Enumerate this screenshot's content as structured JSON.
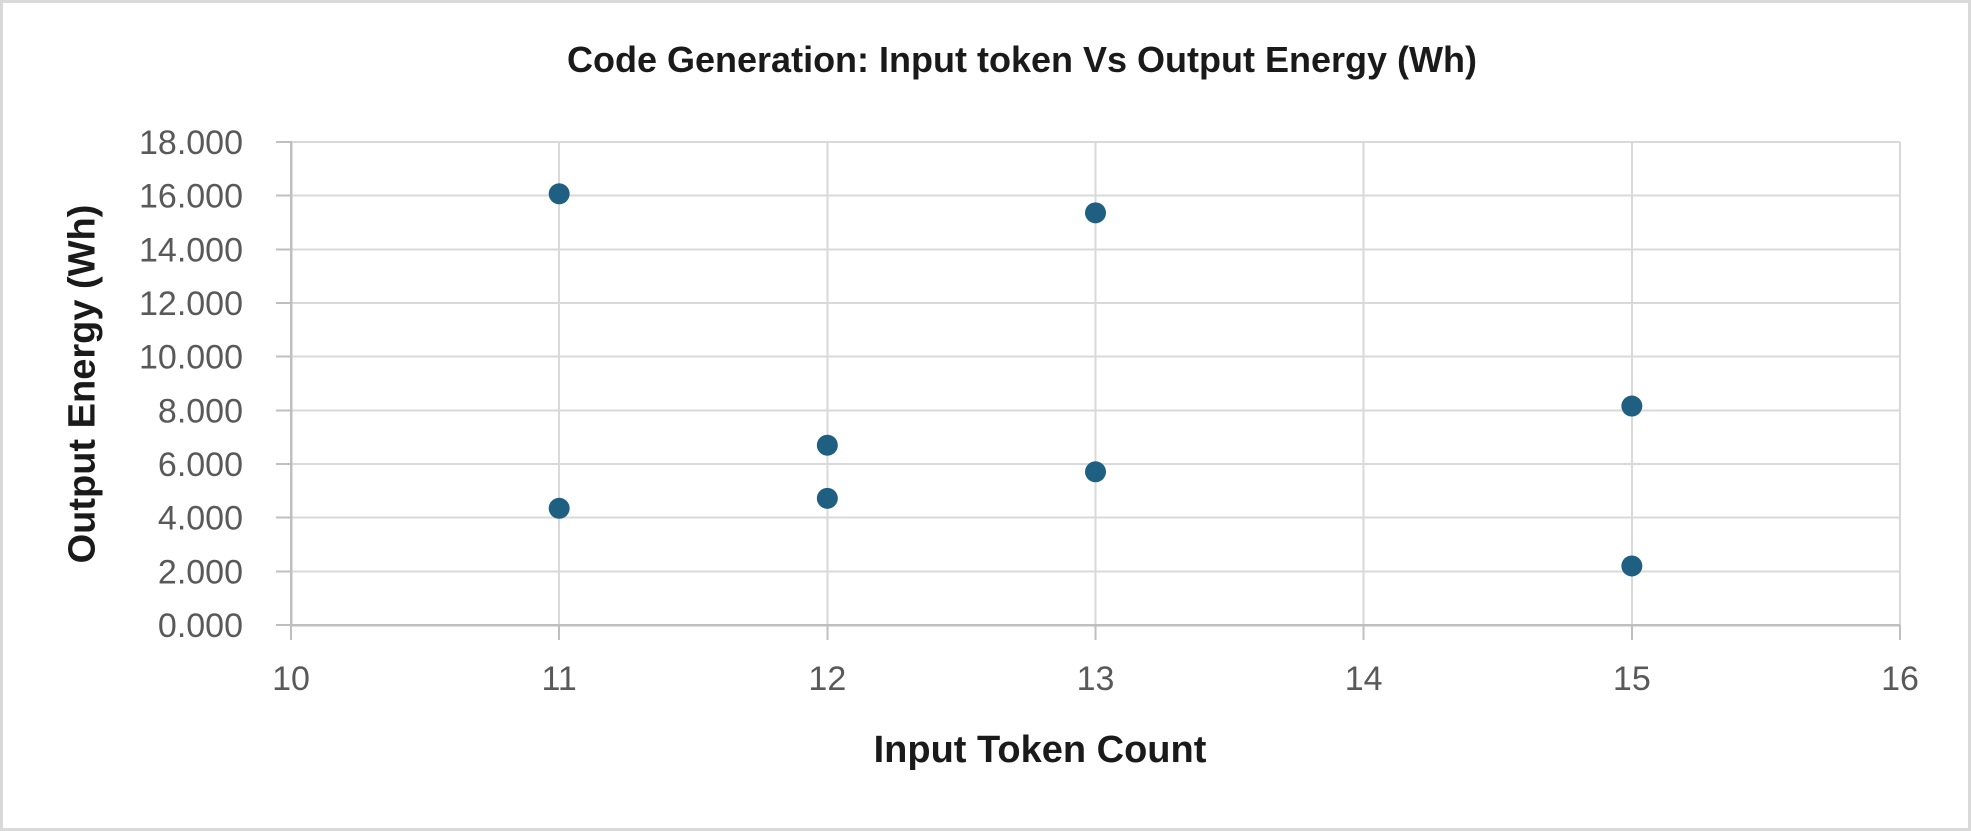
{
  "chart_data": {
    "type": "scatter",
    "title": "Code Generation: Input token Vs Output Energy (Wh)",
    "xlabel": "Input Token Count",
    "ylabel": "Output Energy (Wh)",
    "xlim": [
      10,
      16
    ],
    "ylim": [
      0,
      18
    ],
    "x_ticks": [
      10,
      11,
      12,
      13,
      14,
      15,
      16
    ],
    "y_ticks": [
      0,
      2,
      4,
      6,
      8,
      10,
      12,
      14,
      16,
      18
    ],
    "y_tick_labels": [
      "0.000",
      "2.000",
      "4.000",
      "6.000",
      "8.000",
      "10.000",
      "12.000",
      "14.000",
      "16.000",
      "18.000"
    ],
    "grid": true,
    "legend_position": "none",
    "series": [
      {
        "name": "Output Energy (Wh)",
        "points": [
          {
            "x": 11,
            "y": 16.07
          },
          {
            "x": 11,
            "y": 4.35
          },
          {
            "x": 12,
            "y": 6.7
          },
          {
            "x": 12,
            "y": 4.72
          },
          {
            "x": 13,
            "y": 15.36
          },
          {
            "x": 13,
            "y": 5.71
          },
          {
            "x": 15,
            "y": 8.16
          },
          {
            "x": 15,
            "y": 2.2
          }
        ]
      }
    ]
  },
  "colors": {
    "marker": "#1F6082",
    "gridline": "#D9D9D9",
    "axis_line": "#BFBFBF",
    "tick_label": "#595959",
    "title_text": "#1A1A1A",
    "background": "#FFFFFF",
    "frame_border": "#D9D9D9"
  }
}
